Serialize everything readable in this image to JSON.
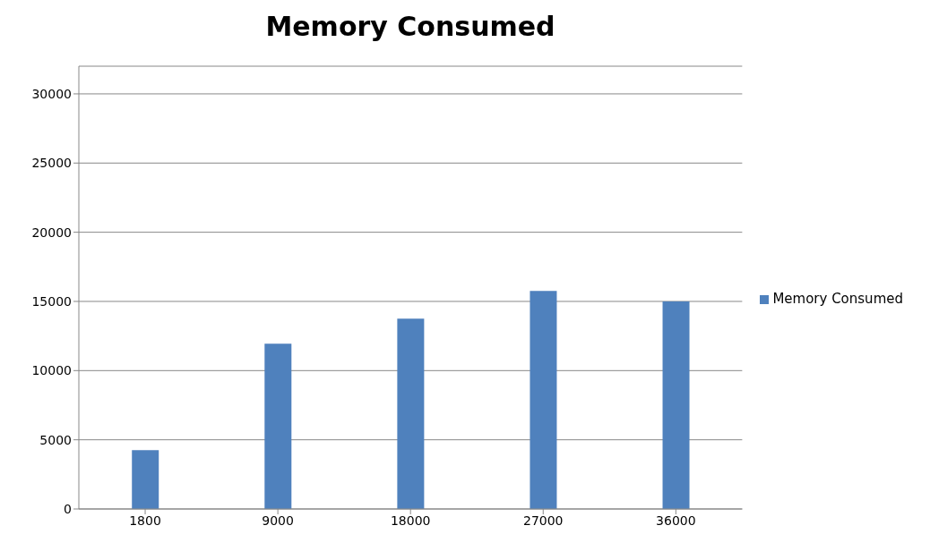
{
  "chart_data": {
    "type": "bar",
    "title": "Memory Consumed",
    "categories": [
      "1800",
      "9000",
      "18000",
      "27000",
      "36000"
    ],
    "series": [
      {
        "name": "Memory Consumed",
        "color": "#4f81bd",
        "values": [
          4250,
          11950,
          13750,
          15750,
          15000
        ]
      }
    ],
    "ylim": [
      0,
      32000
    ],
    "yticks": [
      0,
      5000,
      10000,
      15000,
      20000,
      25000,
      30000
    ],
    "grid": "y",
    "legend": "right"
  }
}
